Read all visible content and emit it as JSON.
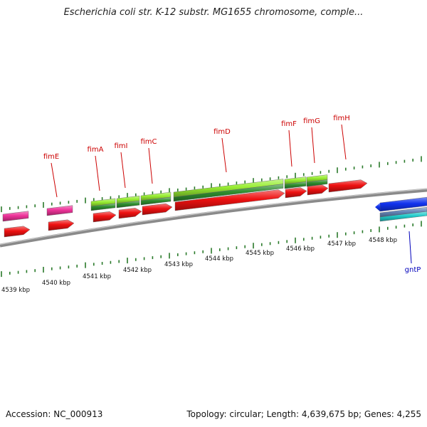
{
  "title": "Escherichia coli str. K-12 substr. MG1655 chromosome, comple...",
  "footer": {
    "accession": "Accession: NC_000913",
    "topology": "Topology: circular; Length: 4,639,675 bp; Genes: 4,255"
  },
  "colors": {
    "backbone": "#8a8a8a",
    "gene_label": "#cc0000",
    "minus_label": "#0000bb",
    "tick": "#2a7a2a",
    "cds_red": "#ee1111",
    "gene_green": "#99ee33",
    "gene_green_dark": "#2f8f2f",
    "magenta": "#ee3399",
    "blue": "#1133ee",
    "cyan": "#22cccc",
    "steel": "#6688bb"
  },
  "scale": {
    "labels": [
      "4539 kbp",
      "4540 kbp",
      "4541 kbp",
      "4542 kbp",
      "4543 kbp",
      "4544 kbp",
      "4545 kbp",
      "4546 kbp",
      "4547 kbp",
      "4548 kbp"
    ]
  },
  "genes_plus": [
    "fimE",
    "fimA",
    "fimI",
    "fimC",
    "fimD",
    "fimF",
    "fimG",
    "fimH"
  ],
  "genes_minus": [
    "gntP"
  ]
}
